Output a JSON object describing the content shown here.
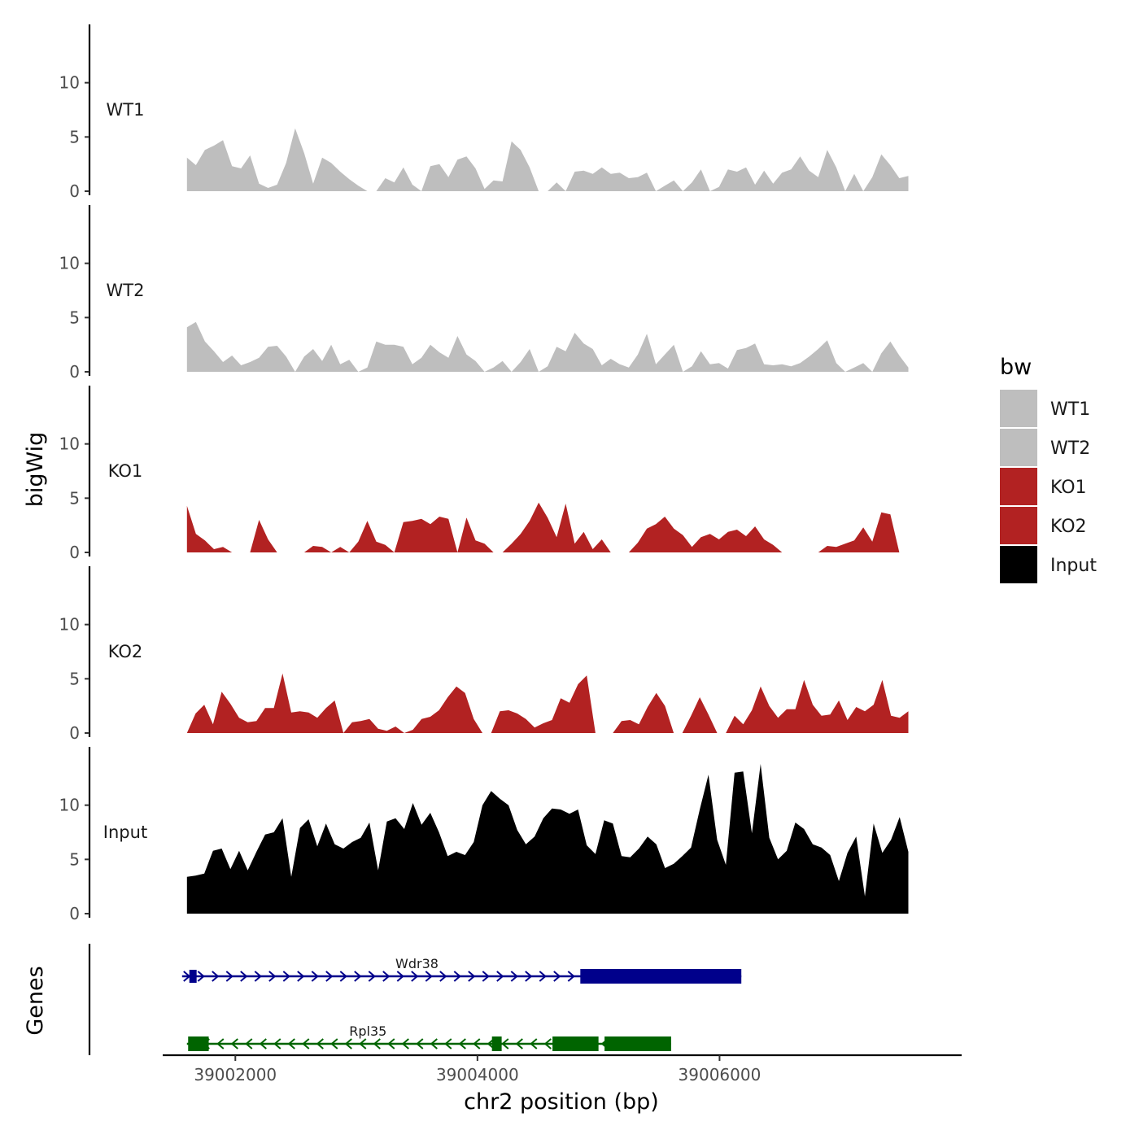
{
  "chart_data": {
    "type": "area",
    "title": "",
    "xlabel": "chr2 position (bp)",
    "ylabel": "bigWig",
    "genes_label": "Genes",
    "xlim": [
      39001400,
      39008000
    ],
    "data_xlim": [
      39001600,
      39007560
    ],
    "xticks": [
      39002000,
      39004000,
      39006000
    ],
    "xtick_labels": [
      "39002000",
      "39004000",
      "39006000"
    ],
    "ylim": [
      0,
      15
    ],
    "yticks": [
      0,
      5,
      10
    ],
    "ytick_labels": [
      "0",
      "5",
      "10"
    ],
    "legend": {
      "title": "bw",
      "position": "right",
      "entries": [
        {
          "label": "WT1",
          "color": "#bebebe"
        },
        {
          "label": "WT2",
          "color": "#bebebe"
        },
        {
          "label": "KO1",
          "color": "#b22222"
        },
        {
          "label": "KO2",
          "color": "#b22222"
        },
        {
          "label": "Input",
          "color": "#000000"
        }
      ]
    },
    "series": [
      {
        "name": "WT1",
        "color": "#bebebe",
        "values": [
          3.1,
          2.4,
          3.8,
          4.2,
          4.7,
          2.3,
          2.1,
          3.3,
          0.7,
          0.3,
          0.6,
          2.6,
          5.8,
          3.5,
          0.7,
          3.1,
          2.6,
          1.8,
          1.1,
          0.5,
          0,
          0,
          1.2,
          0.8,
          2.2,
          0.6,
          0,
          2.3,
          2.5,
          1.3,
          2.9,
          3.2,
          2.1,
          0.2,
          1.0,
          0.9,
          4.6,
          3.8,
          2.2,
          0,
          0,
          0.8,
          0,
          1.8,
          1.9,
          1.6,
          2.2,
          1.6,
          1.7,
          1.2,
          1.3,
          1.7,
          0,
          0.5,
          1.0,
          0,
          0.8,
          2.0,
          0,
          0.4,
          2.0,
          1.8,
          2.2,
          0.6,
          1.9,
          0.7,
          1.7,
          2.0,
          3.2,
          1.9,
          1.3,
          3.8,
          2.2,
          0,
          1.6,
          0,
          1.3,
          3.4,
          2.4,
          1.2,
          1.4
        ]
      },
      {
        "name": "WT2",
        "color": "#bebebe",
        "values": [
          4.1,
          4.6,
          2.8,
          1.9,
          0.9,
          1.5,
          0.6,
          0.9,
          1.3,
          2.3,
          2.4,
          1.4,
          0,
          1.4,
          2.1,
          1.0,
          2.5,
          0.7,
          1.1,
          0,
          0.4,
          2.8,
          2.5,
          2.5,
          2.3,
          0.7,
          1.3,
          2.5,
          1.8,
          1.3,
          3.3,
          1.6,
          1.0,
          0,
          0.4,
          1.0,
          0,
          0.9,
          2.1,
          0,
          0.5,
          2.3,
          1.9,
          3.6,
          2.6,
          2.1,
          0.6,
          1.2,
          0.7,
          0.4,
          1.6,
          3.5,
          0.7,
          1.6,
          2.5,
          0,
          0.5,
          1.9,
          0.7,
          0.8,
          0.3,
          2.0,
          2.2,
          2.6,
          0.7,
          0.6,
          0.7,
          0.5,
          0.8,
          1.4,
          2.1,
          2.9,
          0.8,
          0,
          0.4,
          0.8,
          0,
          1.7,
          2.8,
          1.5,
          0.4
        ]
      },
      {
        "name": "KO1",
        "color": "#b22222",
        "values": [
          4.3,
          1.7,
          1.1,
          0.3,
          0.5,
          0,
          0,
          0,
          3.0,
          1.2,
          0,
          0,
          0,
          0,
          0.6,
          0.5,
          0,
          0.5,
          0,
          1.0,
          2.9,
          1.0,
          0.7,
          0,
          2.8,
          2.9,
          3.1,
          2.6,
          3.3,
          3.1,
          0,
          3.2,
          1.1,
          0.8,
          0,
          0,
          0.8,
          1.7,
          2.9,
          4.6,
          3.2,
          1.4,
          4.5,
          0.8,
          1.9,
          0.3,
          1.2,
          0,
          0,
          0,
          0.9,
          2.2,
          2.6,
          3.3,
          2.2,
          1.6,
          0.5,
          1.4,
          1.7,
          1.2,
          1.9,
          2.1,
          1.5,
          2.4,
          1.2,
          0.7,
          0,
          0,
          0,
          0,
          0,
          0.6,
          0.5,
          0.8,
          1.1,
          2.3,
          1.0,
          3.7,
          3.5,
          0,
          0
        ]
      },
      {
        "name": "KO2",
        "color": "#b22222",
        "values": [
          0,
          1.8,
          2.6,
          0.8,
          3.8,
          2.7,
          1.4,
          1.0,
          1.1,
          2.3,
          2.3,
          5.5,
          1.9,
          2.0,
          1.9,
          1.4,
          2.3,
          3.0,
          0,
          1.0,
          1.1,
          1.3,
          0.4,
          0.2,
          0.6,
          0,
          0.3,
          1.3,
          1.5,
          2.1,
          3.3,
          4.3,
          3.7,
          1.3,
          0,
          0,
          2.0,
          2.1,
          1.8,
          1.3,
          0.5,
          0.9,
          1.2,
          3.2,
          2.8,
          4.5,
          5.3,
          0,
          0,
          0,
          1.1,
          1.2,
          0.8,
          2.4,
          3.7,
          2.5,
          0,
          0,
          1.6,
          3.3,
          1.7,
          0,
          0,
          1.6,
          0.8,
          2.1,
          4.3,
          2.5,
          1.4,
          2.2,
          2.2,
          4.9,
          2.6,
          1.6,
          1.7,
          3.0,
          1.2,
          2.4,
          2.0,
          2.6,
          4.9,
          1.6,
          1.4,
          2.0
        ]
      },
      {
        "name": "Input",
        "color": "#000000",
        "values": [
          3.4,
          3.5,
          3.7,
          5.8,
          6.0,
          4.1,
          5.8,
          4.0,
          5.7,
          7.3,
          7.5,
          8.8,
          3.4,
          7.9,
          8.7,
          6.2,
          8.3,
          6.4,
          6.0,
          6.6,
          7.0,
          8.4,
          4.0,
          8.5,
          8.8,
          7.8,
          10.2,
          8.2,
          9.3,
          7.5,
          5.3,
          5.7,
          5.4,
          6.6,
          10.0,
          11.3,
          10.6,
          10.0,
          7.7,
          6.4,
          7.1,
          8.8,
          9.7,
          9.6,
          9.2,
          9.6,
          6.3,
          5.5,
          8.6,
          8.3,
          5.3,
          5.2,
          6.0,
          7.1,
          6.4,
          4.2,
          4.6,
          5.3,
          6.1,
          9.6,
          12.8,
          6.8,
          4.5,
          13.0,
          13.1,
          7.4,
          13.8,
          7.0,
          5.0,
          5.8,
          8.4,
          7.8,
          6.4,
          6.1,
          5.4,
          3.0,
          5.6,
          7.1,
          1.6,
          8.3,
          5.6,
          6.8,
          8.9,
          5.7
        ]
      }
    ],
    "genes": [
      {
        "name": "Wdr38",
        "strand": "+",
        "color": "#00008b",
        "start": 39001560,
        "end": 39006180,
        "exons": [
          [
            39001620,
            39001680,
            "utr"
          ],
          [
            39004850,
            39006180,
            "cds"
          ]
        ]
      },
      {
        "name": "Rpl35",
        "strand": "-",
        "color": "#006400",
        "start": 39001600,
        "end": 39005600,
        "exons": [
          [
            39001610,
            39001780,
            "cds"
          ],
          [
            39004120,
            39004200,
            "cds"
          ],
          [
            39004620,
            39005000,
            "cds"
          ],
          [
            39005050,
            39005600,
            "cds"
          ]
        ]
      }
    ]
  }
}
